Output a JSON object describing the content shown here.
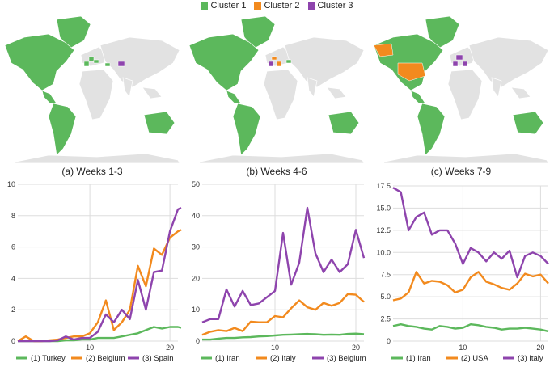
{
  "legend": {
    "items": [
      {
        "label": "Cluster 1",
        "color": "#5cb85c"
      },
      {
        "label": "Cluster 2",
        "color": "#f28a1e"
      },
      {
        "label": "Cluster 3",
        "color": "#8e44ad"
      }
    ]
  },
  "captions": [
    "(a) Weeks 1-3",
    "(b) Weeks 4-6",
    "(c) Weeks 7-9"
  ],
  "colors": {
    "green": "#5cb85c",
    "orange": "#f28a1e",
    "purple": "#8e44ad",
    "grid": "#dddddd",
    "land": "#e2e2e2"
  },
  "chart_data": [
    {
      "type": "line",
      "ylim": [
        0,
        10
      ],
      "xlim": [
        1,
        21
      ],
      "yticks": [
        "0",
        "2",
        "4",
        "6",
        "8",
        "10"
      ],
      "xticks": [
        "10",
        "20"
      ],
      "x": [
        1,
        2,
        3,
        4,
        5,
        6,
        7,
        8,
        9,
        10,
        11,
        12,
        13,
        14,
        15,
        16,
        17,
        18,
        19,
        20,
        21,
        22
      ],
      "series": [
        {
          "name": "(1) Turkey",
          "color": "#5cb85c",
          "values": [
            0,
            0,
            0,
            0,
            0,
            0,
            0.05,
            0.05,
            0.1,
            0.1,
            0.2,
            0.2,
            0.2,
            0.3,
            0.4,
            0.5,
            0.7,
            0.9,
            0.8,
            0.9,
            0.9,
            0.85
          ]
        },
        {
          "name": "(2) Belgium",
          "color": "#f28a1e",
          "values": [
            0,
            0.3,
            0,
            0,
            0.05,
            0.1,
            0.2,
            0.3,
            0.3,
            0.5,
            1.2,
            2.6,
            0.7,
            1.2,
            2.0,
            4.8,
            3.5,
            5.9,
            5.5,
            6.6,
            7.0,
            7.1
          ]
        },
        {
          "name": "(3) Spain",
          "color": "#8e44ad",
          "values": [
            0,
            0,
            0,
            0,
            0,
            0.05,
            0.3,
            0.1,
            0.2,
            0.2,
            0.6,
            1.7,
            1.2,
            2.0,
            1.4,
            3.9,
            2.0,
            4.4,
            4.5,
            7.0,
            8.4,
            8.5
          ]
        }
      ]
    },
    {
      "type": "line",
      "ylim": [
        0,
        50
      ],
      "xlim": [
        1,
        21
      ],
      "yticks": [
        "0",
        "10",
        "20",
        "30",
        "40",
        "50"
      ],
      "xticks": [
        "10",
        "20"
      ],
      "x": [
        1,
        2,
        3,
        4,
        5,
        6,
        7,
        8,
        9,
        10,
        11,
        12,
        13,
        14,
        15,
        16,
        17,
        18,
        19,
        20,
        21
      ],
      "series": [
        {
          "name": "(1) Iran",
          "color": "#5cb85c",
          "values": [
            0.5,
            0.5,
            0.8,
            1,
            1,
            1.2,
            1.3,
            1.5,
            1.6,
            1.8,
            2,
            2.1,
            2.2,
            2.3,
            2.2,
            2,
            2.1,
            2,
            2.3,
            2.4,
            2.2
          ]
        },
        {
          "name": "(2) Italy",
          "color": "#f28a1e",
          "values": [
            2,
            3,
            3.5,
            3.2,
            4.2,
            3.2,
            6.2,
            6,
            6,
            8,
            7.6,
            10.5,
            13,
            10.8,
            10,
            12.2,
            11.3,
            12.2,
            15,
            14.8,
            12.5
          ]
        },
        {
          "name": "(3) Belgium",
          "color": "#8e44ad",
          "values": [
            6,
            7,
            7,
            16.5,
            11,
            16,
            11.5,
            12,
            14,
            16,
            34.5,
            18,
            25,
            42.5,
            28,
            22,
            26,
            22,
            24.5,
            35.5,
            26.5
          ]
        }
      ]
    },
    {
      "type": "line",
      "ylim": [
        0,
        17.5
      ],
      "xlim": [
        1,
        21
      ],
      "yticks": [
        "0",
        "2.5",
        "5.0",
        "7.5",
        "10.0",
        "12.5",
        "15.0",
        "17.5"
      ],
      "xticks": [
        "10",
        "20"
      ],
      "x": [
        1,
        2,
        3,
        4,
        5,
        6,
        7,
        8,
        9,
        10,
        11,
        12,
        13,
        14,
        15,
        16,
        17,
        18,
        19,
        20,
        21
      ],
      "series": [
        {
          "name": "(1) Iran",
          "color": "#5cb85c",
          "values": [
            1.7,
            1.9,
            1.7,
            1.6,
            1.4,
            1.3,
            1.7,
            1.6,
            1.4,
            1.5,
            1.9,
            1.8,
            1.6,
            1.5,
            1.3,
            1.4,
            1.4,
            1.5,
            1.4,
            1.3,
            1.1
          ]
        },
        {
          "name": "(2) USA",
          "color": "#f28a1e",
          "values": [
            4.6,
            4.8,
            5.5,
            7.8,
            6.5,
            6.8,
            6.7,
            6.3,
            5.5,
            5.8,
            7.2,
            7.8,
            6.7,
            6.4,
            6.0,
            5.8,
            6.5,
            7.6,
            7.3,
            7.5,
            6.5
          ]
        },
        {
          "name": "(3) Italy",
          "color": "#8e44ad",
          "values": [
            17.3,
            16.8,
            12.5,
            14.0,
            14.5,
            12.0,
            12.5,
            12.5,
            11.0,
            8.7,
            10.5,
            10.0,
            9.0,
            10.0,
            9.3,
            10.2,
            7.2,
            9.6,
            10.0,
            9.6,
            8.7
          ]
        }
      ]
    }
  ]
}
